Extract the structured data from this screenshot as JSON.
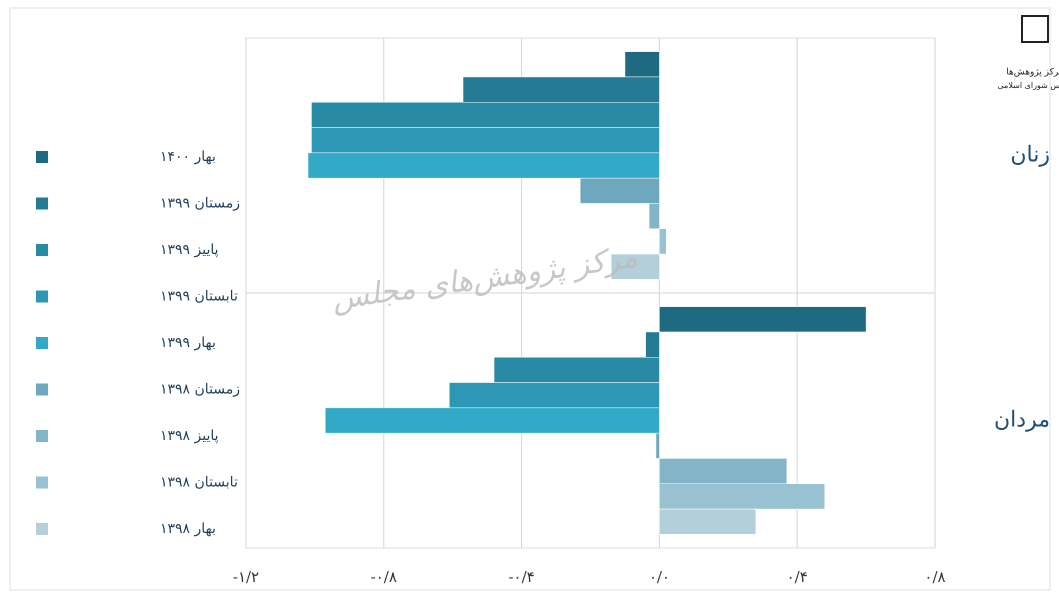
{
  "chart_data": {
    "type": "bar",
    "orientation": "horizontal",
    "watermark": "مرکز پژوهش‌های مجلس",
    "logo": [
      "مرکز پژوهش‌ها",
      "مجلس شورای اسلامی"
    ],
    "categories": [
      "زنان",
      "مردان"
    ],
    "series": [
      {
        "name": "بهار ۱۴۰۰",
        "color": "#1e6a80",
        "values": [
          -0.1,
          0.6
        ]
      },
      {
        "name": "زمستان ۱۳۹۹",
        "color": "#237a92",
        "values": [
          -0.57,
          -0.04
        ]
      },
      {
        "name": "پاییز ۱۳۹۹",
        "color": "#288aa4",
        "values": [
          -1.01,
          -0.48
        ]
      },
      {
        "name": "تابستان ۱۳۹۹",
        "color": "#2c98b6",
        "values": [
          -1.01,
          -0.61
        ]
      },
      {
        "name": "بهار ۱۳۹۹",
        "color": "#33a9c8",
        "values": [
          -1.02,
          -0.97
        ]
      },
      {
        "name": "زمستان ۱۳۹۸",
        "color": "#6ea8bf",
        "values": [
          -0.23,
          -0.01
        ]
      },
      {
        "name": "پاییز ۱۳۹۸",
        "color": "#83b4c7",
        "values": [
          -0.03,
          0.37
        ]
      },
      {
        "name": "تابستان ۱۳۹۸",
        "color": "#98c1d1",
        "values": [
          0.02,
          0.48
        ]
      },
      {
        "name": "بهار ۱۳۹۸",
        "color": "#b3d0da",
        "values": [
          -0.14,
          0.28
        ]
      }
    ],
    "xlim": [
      -1.2,
      0.8
    ],
    "xticks": [
      {
        "value": -1.2,
        "label": "-۱/۲"
      },
      {
        "value": -0.8,
        "label": "-۰/۸"
      },
      {
        "value": -0.4,
        "label": "-۰/۴"
      },
      {
        "value": 0,
        "label": "۰/۰"
      },
      {
        "value": 0.4,
        "label": "۰/۴"
      },
      {
        "value": 0.8,
        "label": "۰/۸"
      }
    ],
    "grid": true
  }
}
